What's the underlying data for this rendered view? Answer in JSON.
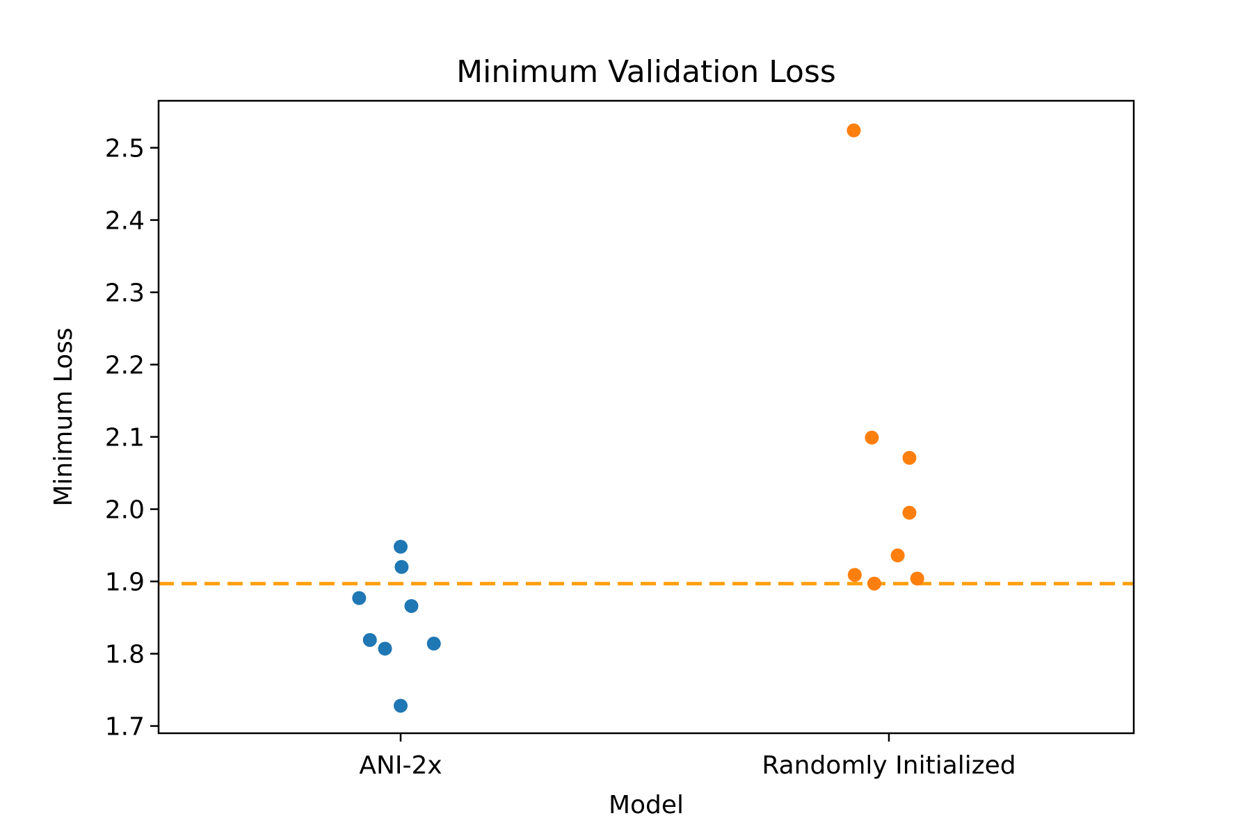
{
  "chart_data": {
    "type": "scatter",
    "title": "Minimum Validation Loss",
    "xlabel": "Model",
    "ylabel": "Minimum Loss",
    "categories": [
      "ANI-2x",
      "Randomly Initialized"
    ],
    "ylim": [
      1.69,
      2.565
    ],
    "yticks": [
      "1.7",
      "1.8",
      "1.9",
      "2.0",
      "2.1",
      "2.2",
      "2.3",
      "2.4",
      "2.5"
    ],
    "grid": false,
    "reference_line": {
      "y": 1.897,
      "color": "#ff9f0e",
      "style": "dashed"
    },
    "series": [
      {
        "category": "ANI-2x",
        "color": "#1f77b4",
        "points": [
          {
            "offset": -0.085,
            "y": 1.877
          },
          {
            "offset": -0.063,
            "y": 1.819
          },
          {
            "offset": -0.032,
            "y": 1.807
          },
          {
            "offset": 0.0,
            "y": 1.948
          },
          {
            "offset": 0.002,
            "y": 1.92
          },
          {
            "offset": 0.022,
            "y": 1.866
          },
          {
            "offset": 0.068,
            "y": 1.814
          },
          {
            "offset": 0.0,
            "y": 1.728
          }
        ]
      },
      {
        "category": "Randomly Initialized",
        "color": "#ff7f0e",
        "points": [
          {
            "offset": -0.072,
            "y": 2.524
          },
          {
            "offset": -0.035,
            "y": 2.099
          },
          {
            "offset": 0.042,
            "y": 2.071
          },
          {
            "offset": 0.042,
            "y": 1.995
          },
          {
            "offset": 0.018,
            "y": 1.936
          },
          {
            "offset": -0.07,
            "y": 1.909
          },
          {
            "offset": -0.03,
            "y": 1.897
          },
          {
            "offset": 0.058,
            "y": 1.904
          }
        ]
      }
    ]
  }
}
